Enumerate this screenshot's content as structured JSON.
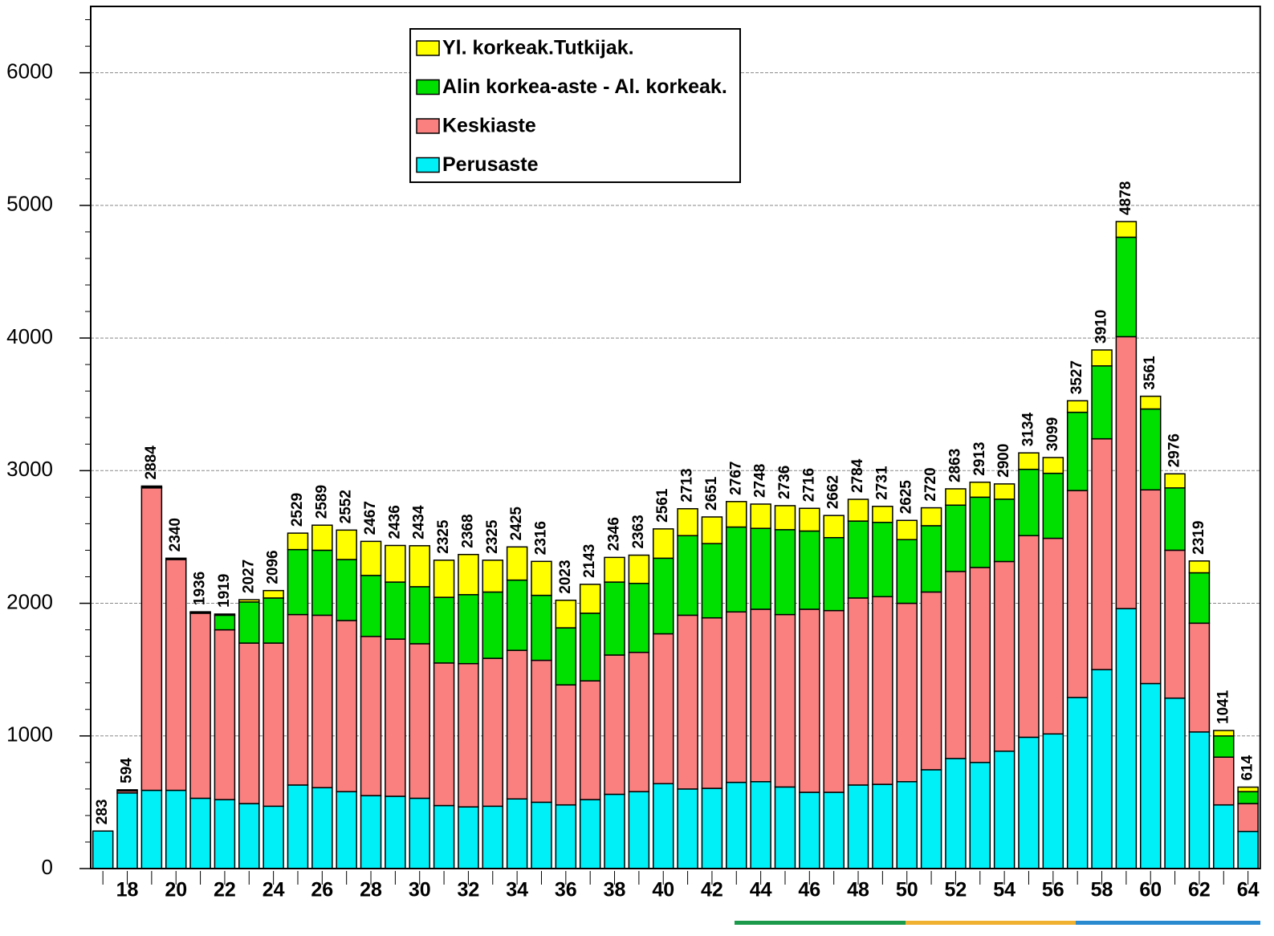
{
  "chart_data": {
    "type": "stacked_bar",
    "categories": [
      null,
      "18",
      null,
      "20",
      null,
      "22",
      null,
      "24",
      null,
      "26",
      null,
      "28",
      null,
      "30",
      null,
      "32",
      null,
      "34",
      null,
      "36",
      null,
      "38",
      null,
      "40",
      null,
      "42",
      null,
      "44",
      null,
      "46",
      null,
      "48",
      null,
      "50",
      null,
      "52",
      null,
      "54",
      null,
      "56",
      null,
      "58",
      null,
      "60",
      null,
      "62",
      null,
      "64"
    ],
    "series": [
      {
        "name": "Perusaste",
        "color": "#00f0f8",
        "values": [
          283,
          570,
          590,
          590,
          530,
          520,
          490,
          470,
          630,
          610,
          580,
          550,
          545,
          530,
          475,
          465,
          470,
          525,
          500,
          480,
          520,
          560,
          580,
          640,
          600,
          605,
          650,
          655,
          615,
          575,
          575,
          630,
          635,
          655,
          745,
          830,
          800,
          885,
          990,
          1015,
          1290,
          1500,
          1960,
          1395,
          1285,
          1030,
          480,
          280
        ]
      },
      {
        "name": "Keskiaste",
        "color": "#fa8080",
        "values": [
          0,
          15,
          2280,
          1740,
          1395,
          1280,
          1210,
          1230,
          1285,
          1300,
          1290,
          1200,
          1185,
          1165,
          1075,
          1080,
          1115,
          1120,
          1070,
          905,
          895,
          1050,
          1050,
          1130,
          1310,
          1285,
          1285,
          1300,
          1300,
          1380,
          1370,
          1410,
          1415,
          1345,
          1340,
          1410,
          1470,
          1430,
          1520,
          1475,
          1560,
          1740,
          2050,
          1460,
          1115,
          820,
          360,
          210
        ]
      },
      {
        "name": "Alin korkea-aste - Al. korkeak.",
        "color": "#00e000",
        "values": [
          0,
          0,
          5,
          5,
          6,
          110,
          310,
          340,
          490,
          490,
          460,
          460,
          430,
          430,
          495,
          520,
          500,
          530,
          490,
          430,
          510,
          550,
          520,
          570,
          600,
          560,
          640,
          610,
          640,
          590,
          550,
          580,
          560,
          480,
          500,
          500,
          530,
          470,
          500,
          490,
          590,
          550,
          750,
          610,
          470,
          380,
          160,
          90
        ]
      },
      {
        "name": "Yl. korkeak.Tutkijak.",
        "color": "#ffff00",
        "values": [
          0,
          9,
          9,
          5,
          5,
          9,
          17,
          56,
          124,
          189,
          222,
          257,
          276,
          309,
          280,
          303,
          240,
          250,
          256,
          208,
          218,
          186,
          213,
          221,
          203,
          201,
          192,
          183,
          181,
          171,
          167,
          164,
          121,
          145,
          135,
          123,
          113,
          115,
          124,
          119,
          87,
          120,
          118,
          96,
          106,
          89,
          41,
          34
        ]
      }
    ],
    "totals": [
      283,
      594,
      2884,
      2340,
      1936,
      1919,
      2027,
      2096,
      2529,
      2589,
      2552,
      2467,
      2436,
      2434,
      2325,
      2368,
      2325,
      2425,
      2316,
      2023,
      2143,
      2346,
      2363,
      2561,
      2713,
      2651,
      2767,
      2748,
      2736,
      2716,
      2662,
      2784,
      2731,
      2625,
      2720,
      2863,
      2913,
      2900,
      3134,
      3099,
      3527,
      3910,
      4878,
      3561,
      2976,
      2319,
      1041,
      614
    ],
    "ylim": [
      0,
      6500
    ],
    "yticks": [
      0,
      1000,
      2000,
      3000,
      4000,
      5000,
      6000
    ],
    "grid": true
  }
}
